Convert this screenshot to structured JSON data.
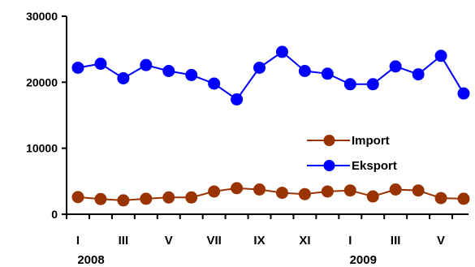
{
  "chart_data": {
    "type": "line",
    "categories": [
      "I",
      "",
      "III",
      "",
      "V",
      "",
      "VII",
      "",
      "IX",
      "",
      "XI",
      "",
      "I",
      "",
      "III",
      "",
      "V",
      ""
    ],
    "years": [
      {
        "label": "2008",
        "index": 0
      },
      {
        "label": "2009",
        "index": 12
      }
    ],
    "series": [
      {
        "name": "Import",
        "color": "#993300",
        "marker_color": "#993300",
        "values": [
          2600,
          2300,
          2100,
          2350,
          2550,
          2550,
          3450,
          3950,
          3750,
          3250,
          3050,
          3450,
          3600,
          2700,
          3750,
          3600,
          2450,
          2350
        ]
      },
      {
        "name": "Eksport",
        "color": "#0000ff",
        "marker_color": "#0000ff",
        "values": [
          22200,
          22800,
          20600,
          22600,
          21700,
          21100,
          19800,
          17400,
          22200,
          24600,
          21700,
          21300,
          19700,
          19700,
          22400,
          21200,
          24000,
          18300
        ]
      }
    ],
    "ylim": [
      0,
      30000
    ],
    "yticks": [
      0,
      10000,
      20000,
      30000
    ],
    "grid": false,
    "legend_position": "right-middle",
    "title": "",
    "xlabel": "",
    "ylabel": ""
  }
}
